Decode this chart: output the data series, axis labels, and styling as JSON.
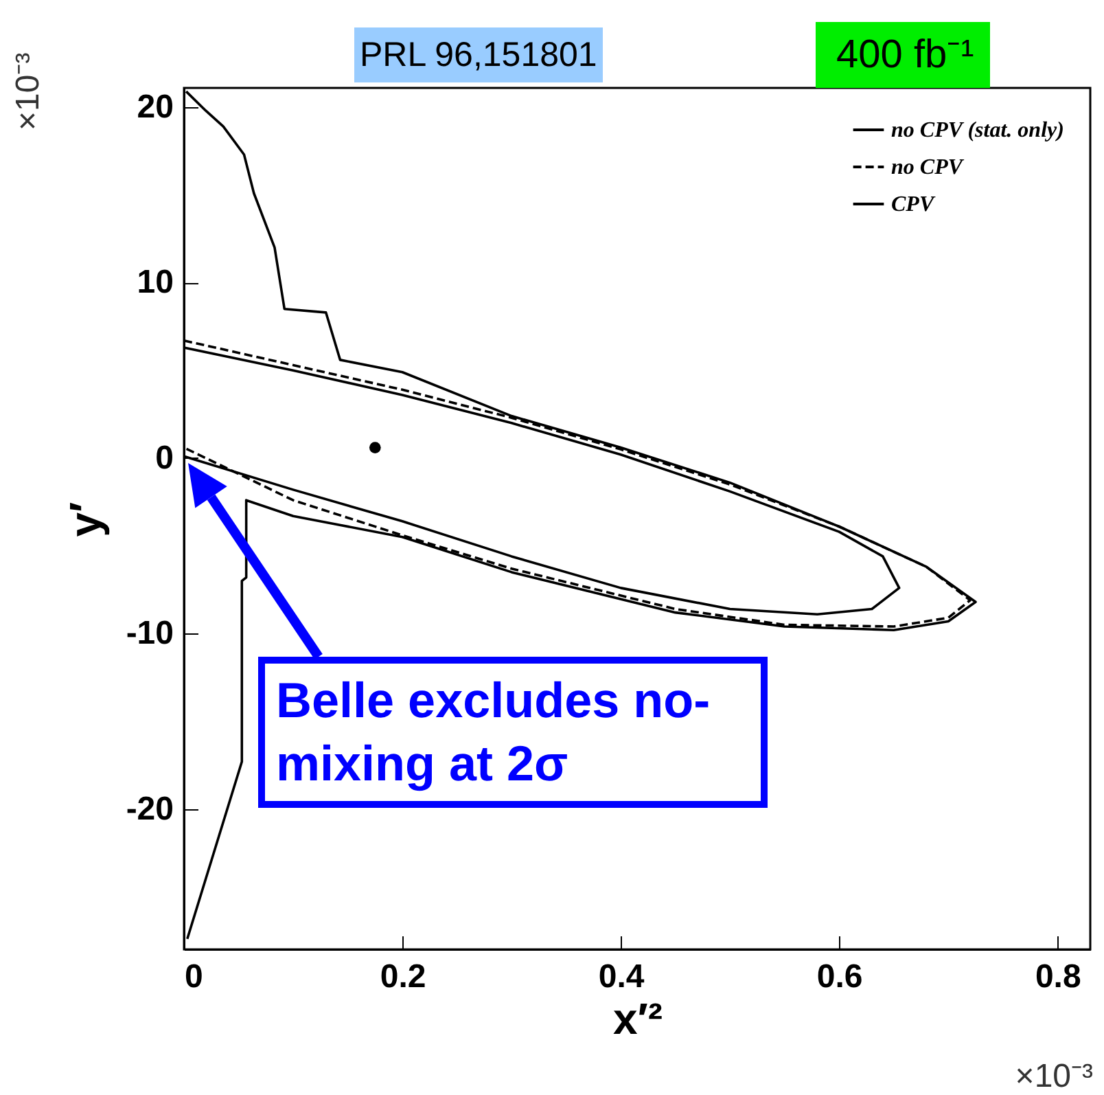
{
  "chart_data": {
    "type": "line",
    "xlabel": "x′²",
    "ylabel": "y′",
    "xlim": [
      0,
      0.83
    ],
    "ylim": [
      -28,
      21.1
    ],
    "xticks": [
      0,
      0.2,
      0.4,
      0.6,
      0.8
    ],
    "yticks": [
      -20,
      -10,
      0,
      10,
      20
    ],
    "grid": false,
    "legend": "top right",
    "marker": "none",
    "series": [
      {
        "name": "no CPV (stat. only)",
        "color": "#000000",
        "line_style": "solid",
        "x": [
          0,
          0.1,
          0.2,
          0.3,
          0.4,
          0.5,
          0.6,
          0.64,
          0.655,
          0.63,
          0.58,
          0.5,
          0.4,
          0.3,
          0.2,
          0.1,
          0
        ],
        "values": [
          6.3,
          5.0,
          3.6,
          2.0,
          0.2,
          -1.9,
          -4.2,
          -5.6,
          -7.4,
          -8.6,
          -8.9,
          -8.6,
          -7.4,
          -5.6,
          -3.6,
          -1.8,
          0.1
        ]
      },
      {
        "name": "no CPV",
        "color": "#000000",
        "line_style": "dashed",
        "x": [
          0,
          0.1,
          0.2,
          0.3,
          0.4,
          0.5,
          0.6,
          0.68,
          0.72,
          0.7,
          0.65,
          0.55,
          0.45,
          0.3,
          0.2,
          0.1,
          0
        ],
        "values": [
          6.7,
          5.3,
          3.9,
          2.3,
          0.5,
          -1.5,
          -3.9,
          -6.2,
          -8.1,
          -9.1,
          -9.6,
          -9.5,
          -8.6,
          -6.3,
          -4.4,
          -2.4,
          0.6
        ]
      },
      {
        "name": "CPV",
        "color": "#000000",
        "line_style": "solid",
        "x": [
          0.002,
          0.02,
          0.036,
          0.055,
          0.064,
          0.083,
          0.092,
          0.13,
          0.143,
          0.2,
          0.3,
          0.4,
          0.5,
          0.6,
          0.68,
          0.725,
          0.7,
          0.65,
          0.55,
          0.45,
          0.3,
          0.2,
          0.1,
          0.057,
          0.057,
          0.053,
          0.053,
          0.003
        ],
        "values": [
          20.9,
          19.8,
          18.9,
          17.3,
          15.1,
          12,
          8.5,
          8.3,
          5.6,
          4.9,
          2.4,
          0.6,
          -1.4,
          -3.9,
          -6.2,
          -8.2,
          -9.3,
          -9.8,
          -9.6,
          -8.8,
          -6.5,
          -4.5,
          -3.3,
          -2.4,
          -6.8,
          -7.0,
          -17.3,
          -27.4
        ]
      },
      {
        "type": "scatter",
        "marker": "circle",
        "color": "#000000",
        "x": [
          0.175
        ],
        "values": [
          0.6
        ]
      }
    ],
    "annotations": [
      "×10⁻³",
      "×10⁻³",
      "PRL 96,151801",
      "400 fb⁻¹",
      "Belle excludes no-mixing at 2σ"
    ]
  }
}
